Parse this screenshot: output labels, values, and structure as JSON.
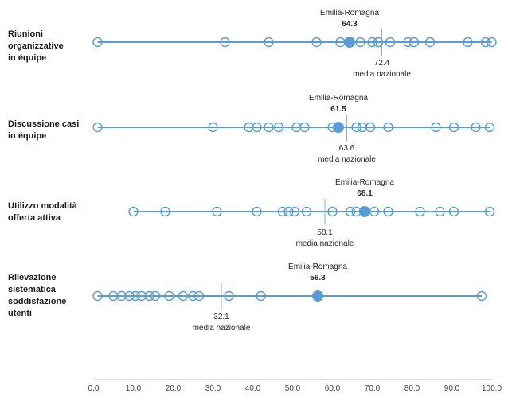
{
  "chart_data": {
    "type": "scatter",
    "title": "",
    "description": "Dot-strip plot comparing Emilia-Romagna against other Italian regions on four service-organisation indicators, with national average reference lines",
    "highlight_name": "Emilia-Romagna",
    "national_average_label": "media nazionale",
    "x_axis": {
      "min": 0,
      "max": 100,
      "tick_step": 10,
      "tick_labels": [
        "0.0",
        "10.0",
        "20.0",
        "30.0",
        "40.0",
        "50.0",
        "60.0",
        "70.0",
        "80.0",
        "90.0",
        "100.0"
      ]
    },
    "rows": [
      {
        "category": "Riunioni\norganizzative\nin équipe",
        "emilia_romagna": 64.3,
        "emilia_romagna_label": "64.3",
        "media_nazionale": 72.4,
        "media_nazionale_label": "72.4",
        "region_values": [
          1,
          33,
          44,
          56,
          62,
          67,
          70,
          71.5,
          74.5,
          79,
          80.5,
          84.5,
          94,
          98.5,
          100
        ]
      },
      {
        "category": "Discussione casi\nin équipe",
        "emilia_romagna": 61.5,
        "emilia_romagna_label": "61.5",
        "media_nazionale": 63.6,
        "media_nazionale_label": "63.6",
        "region_values": [
          1,
          30,
          39,
          41,
          44,
          46.5,
          51,
          53,
          60,
          66,
          67.5,
          69.5,
          74,
          86,
          90.5,
          96,
          99.5
        ]
      },
      {
        "category": "Utilizzo modalità\nofferta attiva",
        "emilia_romagna": 68.1,
        "emilia_romagna_label": "68.1",
        "media_nazionale": 58.1,
        "media_nazionale_label": "58.1",
        "region_values": [
          10,
          18,
          31,
          41,
          47.5,
          49,
          50.5,
          53.5,
          60,
          64.5,
          66,
          70.5,
          74,
          82,
          87,
          90.5,
          99.5
        ]
      },
      {
        "category": "Rilevazione\nsistematica\nsoddisfazione\nutenti",
        "emilia_romagna": 56.3,
        "emilia_romagna_label": "56.3",
        "media_nazionale": 32.1,
        "media_nazionale_label": "32.1",
        "region_values": [
          1,
          5,
          7,
          9,
          10.5,
          12,
          14,
          15.5,
          19,
          22.5,
          25,
          26.5,
          34,
          42,
          97.5
        ]
      }
    ],
    "legend_position": "none",
    "grid": false
  },
  "colors": {
    "accent_blue": "#5B9BD5",
    "reference_line_blue": "#7EAEDE",
    "axis_gray": "#BFBFBF",
    "text_dark": "#262626"
  }
}
